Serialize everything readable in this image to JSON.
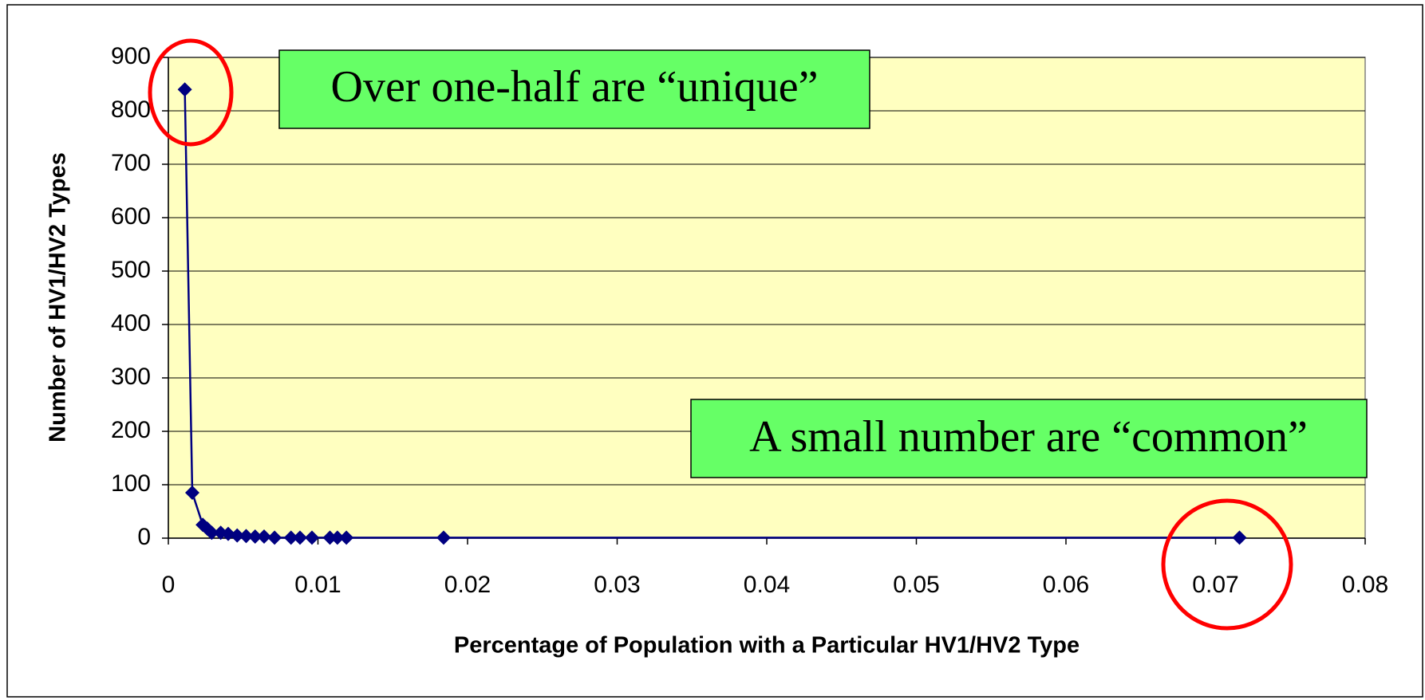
{
  "chart_data": {
    "type": "line",
    "x_label": "Percentage of Population with a Particular HV1/HV2 Type",
    "y_label": "Number of HV1/HV2 Types",
    "annotations": [
      "Over one-half are “unique”",
      "A small number are “common”"
    ],
    "series": [
      {
        "name": "HV1/HV2 Types",
        "color": "#000080",
        "x": [
          0.0011,
          0.0016,
          0.0023,
          0.0026,
          0.0029,
          0.0035,
          0.004,
          0.0046,
          0.0052,
          0.0058,
          0.0064,
          0.0071,
          0.0082,
          0.0088,
          0.0096,
          0.0108,
          0.0113,
          0.0119,
          0.0184,
          0.0716
        ],
        "values": [
          840,
          85,
          25,
          18,
          10,
          10,
          8,
          5,
          4,
          3,
          3,
          1,
          1,
          1,
          1,
          1,
          1,
          1,
          1,
          1
        ]
      }
    ],
    "xlim": [
      0,
      0.08
    ],
    "xticks": [
      0,
      0.01,
      0.02,
      0.03,
      0.04,
      0.05,
      0.06,
      0.07,
      0.08
    ],
    "ylim": [
      0,
      900
    ],
    "yticks": [
      0,
      100,
      200,
      300,
      400,
      500,
      600,
      700,
      800,
      900
    ],
    "grid": true,
    "plot_background": "#ffffc0"
  }
}
